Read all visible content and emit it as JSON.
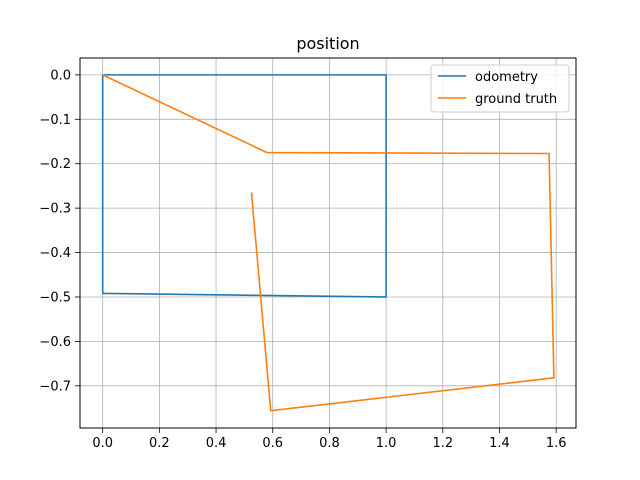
{
  "chart_data": {
    "type": "line",
    "title": "position",
    "xlabel": "",
    "ylabel": "",
    "xlim": [
      -0.08,
      1.67
    ],
    "ylim": [
      -0.795,
      0.038
    ],
    "x_ticks": [
      0.0,
      0.2,
      0.4,
      0.6,
      0.8,
      1.0,
      1.2,
      1.4,
      1.6
    ],
    "x_tick_labels": [
      "0.0",
      "0.2",
      "0.4",
      "0.6",
      "0.8",
      "1.0",
      "1.2",
      "1.4",
      "1.6"
    ],
    "y_ticks": [
      0.0,
      -0.1,
      -0.2,
      -0.3,
      -0.4,
      -0.5,
      -0.6,
      -0.7
    ],
    "y_tick_labels": [
      "0.0",
      "−0.1",
      "−0.2",
      "−0.3",
      "−0.4",
      "−0.5",
      "−0.6",
      "−0.7"
    ],
    "grid": true,
    "legend_position": "top-right",
    "series": [
      {
        "name": "odometry",
        "color": "#1f77b4",
        "points": [
          [
            0.0,
            0.0
          ],
          [
            1.0,
            0.0
          ],
          [
            1.0,
            -0.5
          ],
          [
            0.0,
            -0.492
          ],
          [
            0.0,
            0.0
          ]
        ]
      },
      {
        "name": "ground truth",
        "color": "#ff7f0e",
        "points": [
          [
            0.0,
            0.0
          ],
          [
            0.58,
            -0.175
          ],
          [
            1.575,
            -0.177
          ],
          [
            1.592,
            -0.682
          ],
          [
            0.593,
            -0.756
          ],
          [
            0.525,
            -0.265
          ]
        ]
      }
    ]
  }
}
